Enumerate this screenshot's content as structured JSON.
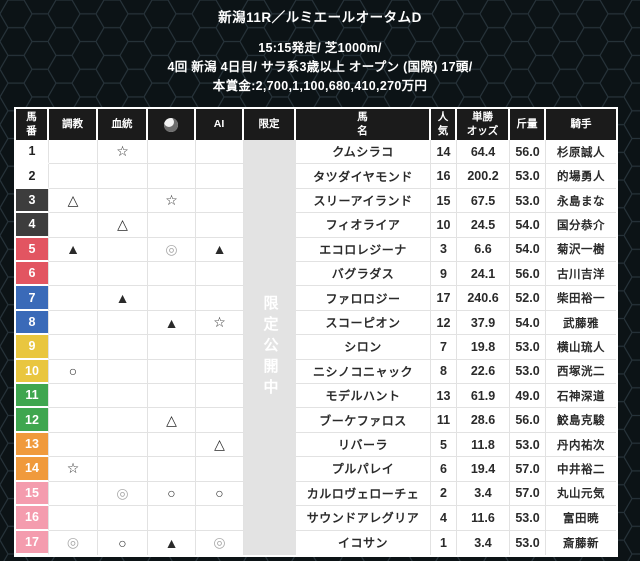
{
  "race_header": {
    "title": "新潟11R／ルミエールオータムD",
    "line1": "15:15発走/ 芝1000m/",
    "line2": "4回 新潟 4日目/ サラ系3歳以上 オープン (国際) 17頭/",
    "line3": "本賞金:2,700,1,100,680,410,270万円"
  },
  "table": {
    "columns": {
      "num": "馬\n番",
      "training": "調教",
      "blood": "血統",
      "site_icon": "site-logo-icon",
      "ai": "AI",
      "limited": "限定",
      "name": "馬\n名",
      "popularity": "人\n気",
      "odds": "単勝\nオッズ",
      "weight": "斤量",
      "jockey": "騎手"
    },
    "overlay_text": "限定公開中",
    "rows": [
      {
        "num": "1",
        "bracket": "1",
        "training": "",
        "blood": "☆",
        "site": "",
        "ai": "",
        "name": "クムシラコ",
        "popularity": "14",
        "odds": "64.4",
        "weight": "56.0",
        "jockey": "杉原誠人"
      },
      {
        "num": "2",
        "bracket": "1",
        "training": "",
        "blood": "",
        "site": "",
        "ai": "",
        "name": "タツダイヤモンド",
        "popularity": "16",
        "odds": "200.2",
        "weight": "53.0",
        "jockey": "的場勇人"
      },
      {
        "num": "3",
        "bracket": "2",
        "training": "△",
        "blood": "",
        "site": "☆",
        "ai": "",
        "name": "スリーアイランド",
        "popularity": "15",
        "odds": "67.5",
        "weight": "53.0",
        "jockey": "永島まな"
      },
      {
        "num": "4",
        "bracket": "2",
        "training": "",
        "blood": "△",
        "site": "",
        "ai": "",
        "name": "フィオライア",
        "popularity": "10",
        "odds": "24.5",
        "weight": "54.0",
        "jockey": "国分恭介"
      },
      {
        "num": "5",
        "bracket": "3",
        "training": "▲",
        "blood": "",
        "site": "◎",
        "ai": "▲",
        "name": "エコロレジーナ",
        "popularity": "3",
        "odds": "6.6",
        "weight": "54.0",
        "jockey": "菊沢一樹"
      },
      {
        "num": "6",
        "bracket": "3",
        "training": "",
        "blood": "",
        "site": "",
        "ai": "",
        "name": "バグラダス",
        "popularity": "9",
        "odds": "24.1",
        "weight": "56.0",
        "jockey": "古川吉洋"
      },
      {
        "num": "7",
        "bracket": "4",
        "training": "",
        "blood": "▲",
        "site": "",
        "ai": "",
        "name": "ファロロジー",
        "popularity": "17",
        "odds": "240.6",
        "weight": "52.0",
        "jockey": "柴田裕一"
      },
      {
        "num": "8",
        "bracket": "4",
        "training": "",
        "blood": "",
        "site": "▲",
        "ai": "☆",
        "name": "スコーピオン",
        "popularity": "12",
        "odds": "37.9",
        "weight": "54.0",
        "jockey": "武藤雅"
      },
      {
        "num": "9",
        "bracket": "5",
        "training": "",
        "blood": "",
        "site": "",
        "ai": "",
        "name": "シロン",
        "popularity": "7",
        "odds": "19.8",
        "weight": "53.0",
        "jockey": "横山琉人"
      },
      {
        "num": "10",
        "bracket": "5",
        "training": "○",
        "blood": "",
        "site": "",
        "ai": "",
        "name": "ニシノコニャック",
        "popularity": "8",
        "odds": "22.6",
        "weight": "53.0",
        "jockey": "西塚洸二"
      },
      {
        "num": "11",
        "bracket": "6",
        "training": "",
        "blood": "",
        "site": "",
        "ai": "",
        "name": "モデルハント",
        "popularity": "13",
        "odds": "61.9",
        "weight": "49.0",
        "jockey": "石神深道"
      },
      {
        "num": "12",
        "bracket": "6",
        "training": "",
        "blood": "",
        "site": "△",
        "ai": "",
        "name": "ブーケファロス",
        "popularity": "11",
        "odds": "28.6",
        "weight": "56.0",
        "jockey": "鮫島克駿"
      },
      {
        "num": "13",
        "bracket": "7",
        "training": "",
        "blood": "",
        "site": "",
        "ai": "△",
        "name": "リバーラ",
        "popularity": "5",
        "odds": "11.8",
        "weight": "53.0",
        "jockey": "丹内祐次"
      },
      {
        "num": "14",
        "bracket": "7",
        "training": "☆",
        "blood": "",
        "site": "",
        "ai": "",
        "name": "プルパレイ",
        "popularity": "6",
        "odds": "19.4",
        "weight": "57.0",
        "jockey": "中井裕二"
      },
      {
        "num": "15",
        "bracket": "8",
        "training": "",
        "blood": "◎",
        "site": "○",
        "ai": "○",
        "name": "カルロヴェローチェ",
        "popularity": "2",
        "odds": "3.4",
        "weight": "57.0",
        "jockey": "丸山元気"
      },
      {
        "num": "16",
        "bracket": "8",
        "training": "",
        "blood": "",
        "site": "",
        "ai": "",
        "name": "サウンドアレグリア",
        "popularity": "4",
        "odds": "11.6",
        "weight": "53.0",
        "jockey": "富田暁"
      },
      {
        "num": "17",
        "bracket": "8",
        "training": "◎",
        "blood": "○",
        "site": "▲",
        "ai": "◎",
        "name": "イコサン",
        "popularity": "1",
        "odds": "3.4",
        "weight": "53.0",
        "jockey": "斎藤新"
      }
    ]
  },
  "colors": {
    "page_bg": "#0c1316",
    "hex_line": "#27333a",
    "header_cell_bg": "#1b1b1b",
    "grid_line": "#e2e2e2",
    "overlay_band": "#e3e3e3",
    "overlay_text": "#ffffff",
    "mark_gray": "#a9a9a9",
    "bracket_colors": {
      "1": {
        "bg": "#ffffff",
        "fg": "#222222"
      },
      "2": {
        "bg": "#3d3d3d",
        "fg": "#ffffff"
      },
      "3": {
        "bg": "#e25561",
        "fg": "#ffffff"
      },
      "4": {
        "bg": "#3a6ab8",
        "fg": "#ffffff"
      },
      "5": {
        "bg": "#e9c63f",
        "fg": "#ffffff"
      },
      "6": {
        "bg": "#3fa64f",
        "fg": "#ffffff"
      },
      "7": {
        "bg": "#f09a3c",
        "fg": "#ffffff"
      },
      "8": {
        "bg": "#f49cae",
        "fg": "#ffffff"
      }
    }
  }
}
